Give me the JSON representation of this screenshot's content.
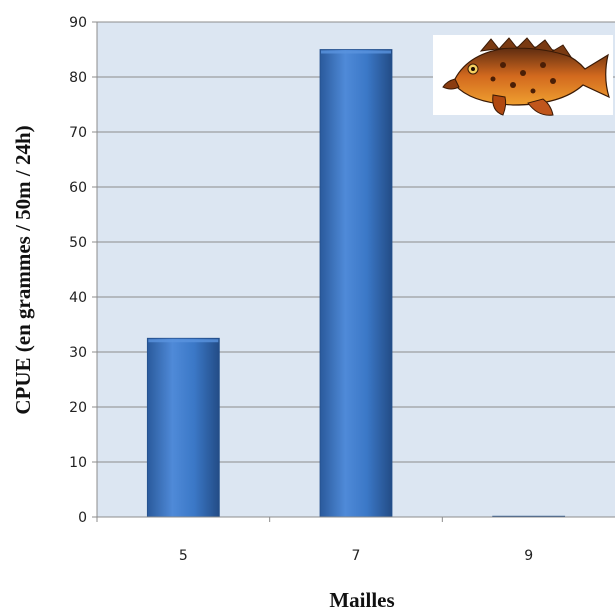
{
  "chart_data": {
    "type": "bar",
    "categories": [
      "5",
      "7",
      "9"
    ],
    "values": [
      32.5,
      85,
      0.1
    ],
    "xlabel": "Mailles",
    "ylabel": "CPUE (en grammes / 50m / 24h)",
    "ylim": [
      0,
      90
    ],
    "yticks": [
      "0",
      "10",
      "20",
      "30",
      "40",
      "50",
      "60",
      "70",
      "80",
      "90"
    ],
    "grid": true,
    "legend": "none",
    "colors": {
      "plot_background": "#dce6f2",
      "bar": "#3b78c7",
      "bar_light": "#5a94df",
      "bar_dark": "#244f8c",
      "gridline": "#8c8c8c"
    },
    "image": "fish-illustration"
  }
}
